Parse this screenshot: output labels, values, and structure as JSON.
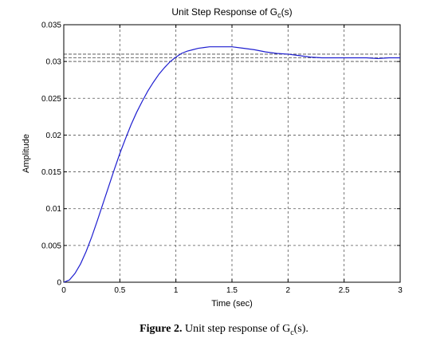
{
  "chart_data": {
    "type": "line",
    "title": "Unit Step Response of G",
    "title_subscript": "c",
    "title_suffix": "(s)",
    "xlabel": "Time (sec)",
    "ylabel": "Amplitude",
    "xlim": [
      0,
      3
    ],
    "ylim": [
      0,
      0.035
    ],
    "x_ticks": [
      0,
      0.5,
      1,
      1.5,
      2,
      2.5,
      3
    ],
    "x_tick_labels": [
      "0",
      "0.5",
      "1",
      "1.5",
      "2",
      "2.5",
      "3"
    ],
    "y_ticks": [
      0,
      0.005,
      0.01,
      0.015,
      0.02,
      0.025,
      0.03,
      0.035
    ],
    "y_tick_labels": [
      "0",
      "0.005",
      "0.01",
      "0.015",
      "0.02",
      "0.025",
      "0.03",
      "0.035"
    ],
    "grid": true,
    "reference_lines_y": [
      0.03,
      0.0305,
      0.031
    ],
    "line_color": "#1f1fd0",
    "series": [
      {
        "x": [
          0,
          0.05,
          0.1,
          0.15,
          0.2,
          0.25,
          0.3,
          0.35,
          0.4,
          0.45,
          0.5,
          0.55,
          0.6,
          0.65,
          0.7,
          0.75,
          0.8,
          0.85,
          0.9,
          0.95,
          1.0,
          1.05,
          1.1,
          1.15,
          1.2,
          1.25,
          1.3,
          1.35,
          1.4,
          1.45,
          1.5,
          1.6,
          1.7,
          1.8,
          1.9,
          2.0,
          2.1,
          2.2,
          2.3,
          2.4,
          2.5,
          2.6,
          2.7,
          2.8,
          2.9,
          3.0
        ],
        "y": [
          0,
          0.0003,
          0.0012,
          0.0025,
          0.0042,
          0.0062,
          0.0084,
          0.0107,
          0.013,
          0.0153,
          0.0175,
          0.0195,
          0.0214,
          0.0231,
          0.0246,
          0.026,
          0.0272,
          0.0283,
          0.0292,
          0.03,
          0.0306,
          0.0311,
          0.0314,
          0.0316,
          0.0318,
          0.0319,
          0.032,
          0.032,
          0.032,
          0.032,
          0.032,
          0.0318,
          0.0316,
          0.0313,
          0.0311,
          0.031,
          0.0308,
          0.0306,
          0.0305,
          0.0305,
          0.0305,
          0.0305,
          0.0305,
          0.0304,
          0.0305,
          0.0305
        ]
      }
    ]
  },
  "caption": {
    "label": "Figure 2.",
    "text_prefix": "Unit step response of G",
    "text_subscript": "c",
    "text_suffix": "(s)."
  }
}
